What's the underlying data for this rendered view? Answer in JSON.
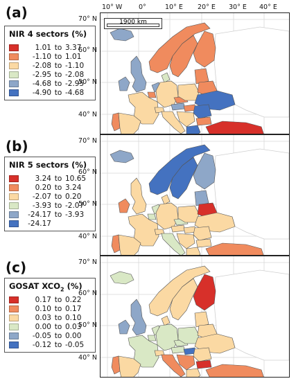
{
  "longitude_labels": [
    "10° W",
    "0°",
    "10° E",
    "20° E",
    "30° E",
    "40° E"
  ],
  "latitude_labels": [
    "70° N",
    "60° N",
    "50° N",
    "40° N"
  ],
  "scale_bar": "1900 km",
  "panels": [
    {
      "label": "(a)",
      "legend_title": "NIR 4 sectors (%)",
      "legend_title_sub": "",
      "legend_title_suffix": "",
      "classes": [
        {
          "lo": "1.01",
          "hi": "3.37",
          "color": "#d7302a"
        },
        {
          "lo": "-1.10",
          "hi": "1.01",
          "color": "#f08b5e"
        },
        {
          "lo": "-2.08",
          "hi": "-1.10",
          "color": "#fbd9a3"
        },
        {
          "lo": "-2.95",
          "hi": "-2.08",
          "color": "#d9e8c5"
        },
        {
          "lo": "-4.68",
          "hi": "-2.95",
          "color": "#8ea7c8"
        },
        {
          "lo": "-4.90",
          "hi": "-4.68",
          "color": "#4472c0"
        }
      ],
      "countries": {
        "iceland": "#8ea7c8",
        "ireland": "#8ea7c8",
        "uk": "#8ea7c8",
        "norway": "#f08b5e",
        "sweden": "#f08b5e",
        "finland": "#f08b5e",
        "portugal": "#f08b5e",
        "spain": "#fbd9a3",
        "france": "#fbd9a3",
        "belgium": "#f08b5e",
        "netherlands": "#8ea7c8",
        "germany": "#fbd9a3",
        "denmark": "#d9e8c5",
        "poland": "#fbd9a3",
        "czech": "#f08b5e",
        "austria": "#8ea7c8",
        "switzerland": "#fbd9a3",
        "italy": "#fbd9a3",
        "baltics": "#f08b5e",
        "belarus": "#f08b5e",
        "ukraine": "#4472c0",
        "hungary": "#f08b5e",
        "romania": "#4472c0",
        "balkans": "#fbd9a3",
        "bulgaria": "#f08b5e",
        "greece": "#4472c0",
        "turkey": "#d7302a"
      }
    },
    {
      "label": "(b)",
      "legend_title": "NIR 5 sectors (%)",
      "legend_title_sub": "",
      "legend_title_suffix": "",
      "classes": [
        {
          "lo": "3.24",
          "hi": "10.65",
          "color": "#d7302a"
        },
        {
          "lo": "0.20",
          "hi": "3.24",
          "color": "#f08b5e"
        },
        {
          "lo": "-2.07",
          "hi": "0.20",
          "color": "#fbd9a3"
        },
        {
          "lo": "-3.93",
          "hi": "-2.07",
          "color": "#d9e8c5"
        },
        {
          "lo": "-24.17",
          "hi": "-3.93",
          "color": "#8ea7c8"
        },
        {
          "lo": "-24.17",
          "hi": "",
          "color": "#4472c0"
        }
      ],
      "countries": {
        "iceland": "#8ea7c8",
        "ireland": "#f08b5e",
        "uk": "#fbd9a3",
        "norway": "#4472c0",
        "sweden": "#4472c0",
        "finland": "#8ea7c8",
        "portugal": "#f08b5e",
        "spain": "#fbd9a3",
        "france": "#fbd9a3",
        "belgium": "#d9e8c5",
        "netherlands": "#d9e8c5",
        "germany": "#fbd9a3",
        "denmark": "#fbd9a3",
        "poland": "#fbd9a3",
        "czech": "#d9e8c5",
        "austria": "#fbd9a3",
        "switzerland": "#fbd9a3",
        "italy": "#d9e8c5",
        "baltics": "#8ea7c8",
        "belarus": "#d7302a",
        "ukraine": "#fbd9a3",
        "hungary": "#fbd9a3",
        "romania": "#fbd9a3",
        "balkans": "#fbd9a3",
        "bulgaria": "#fbd9a3",
        "greece": "#fbd9a3",
        "turkey": "#f08b5e"
      }
    },
    {
      "label": "(c)",
      "legend_title": "GOSAT XCO",
      "legend_title_sub": "2",
      "legend_title_suffix": " (%)",
      "classes": [
        {
          "lo": "0.17",
          "hi": "0.22",
          "color": "#d7302a"
        },
        {
          "lo": "0.10",
          "hi": "0.17",
          "color": "#f08b5e"
        },
        {
          "lo": "0.03",
          "hi": "0.10",
          "color": "#fbd9a3"
        },
        {
          "lo": "0.00",
          "hi": "0.03",
          "color": "#d9e8c5"
        },
        {
          "lo": "-0.05",
          "hi": "0.00",
          "color": "#8ea7c8"
        },
        {
          "lo": "-0.12",
          "hi": "-0.05",
          "color": "#4472c0"
        }
      ],
      "countries": {
        "iceland": "#d9e8c5",
        "ireland": "#8ea7c8",
        "uk": "#8ea7c8",
        "norway": "#fbd9a3",
        "sweden": "#fbd9a3",
        "finland": "#d7302a",
        "portugal": "#f08b5e",
        "spain": "#fbd9a3",
        "france": "#d9e8c5",
        "belgium": "#d9e8c5",
        "netherlands": "#d9e8c5",
        "germany": "#d9e8c5",
        "denmark": "#fbd9a3",
        "poland": "#d9e8c5",
        "czech": "#d9e8c5",
        "austria": "#d9e8c5",
        "switzerland": "#fbd9a3",
        "italy": "#f08b5e",
        "baltics": "#fbd9a3",
        "belarus": "#fbd9a3",
        "ukraine": "#fbd9a3",
        "hungary": "#4472c0",
        "romania": "#fbd9a3",
        "balkans": "#f08b5e",
        "bulgaria": "#d7302a",
        "greece": "#fbd9a3",
        "turkey": "#f08b5e"
      }
    }
  ]
}
